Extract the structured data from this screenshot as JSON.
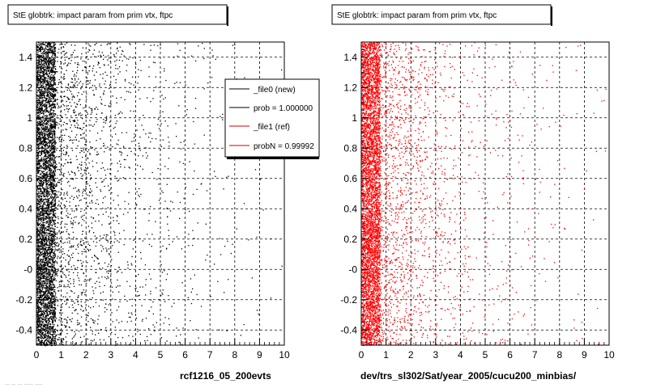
{
  "chart_data": [
    {
      "type": "scatter",
      "title": "StE globtrk: impact param from prim vtx, ftpc",
      "xlabel": "rcf1216_05_200evts",
      "ylabel": "",
      "xlim": [
        0,
        10
      ],
      "ylim": [
        -0.5,
        1.5
      ],
      "x_ticks": [
        "0",
        "1",
        "2",
        "3",
        "4",
        "5",
        "6",
        "7",
        "8",
        "9",
        "10"
      ],
      "y_ticks": [
        "-0.4",
        "-0.2",
        "-0",
        "0.2",
        "0.4",
        "0.6",
        "0.8",
        "1",
        "1.2",
        "1.4"
      ],
      "grid": true,
      "marker_color": "#000000",
      "legend": {
        "placement": "top-right",
        "entries": [
          {
            "label": "_file0 (new)",
            "color": "#000000"
          },
          {
            "label": "prob = 1.000000",
            "color": "#000000"
          },
          {
            "label": "_file1 (ref)",
            "color": "#cc0000"
          },
          {
            "label": "probN = 0.99992",
            "color": "#cc0000"
          }
        ]
      },
      "seed": 17
    },
    {
      "type": "scatter",
      "title": "StE globtrk: impact param from prim vtx, ftpc",
      "xlabel": "dev/trs_sl302/Sat/year_2005/cucu200_minbias/",
      "ylabel": "",
      "xlim": [
        0,
        10
      ],
      "ylim": [
        -0.5,
        1.5
      ],
      "x_ticks": [
        "0",
        "1",
        "2",
        "3",
        "4",
        "5",
        "6",
        "7",
        "8",
        "9",
        "10"
      ],
      "y_ticks": [
        "-0.4",
        "-0.2",
        "-0",
        "0.2",
        "0.4",
        "0.6",
        "0.8",
        "1",
        "1.2",
        "1.4"
      ],
      "grid": true,
      "marker_color": "#ff0000",
      "seed": 91
    }
  ],
  "footer_text": "... ... ... ...... ....."
}
